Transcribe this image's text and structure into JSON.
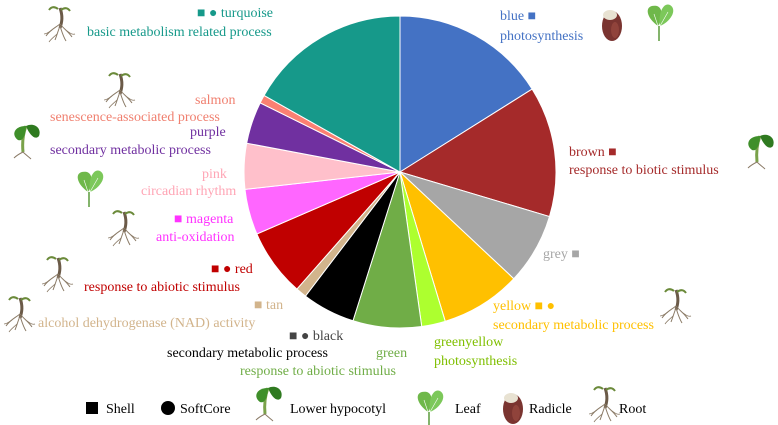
{
  "chart_data": {
    "type": "pie",
    "start_angle_deg": 90,
    "direction": "clockwise",
    "slices": [
      {
        "module": "blue",
        "marker": "■",
        "function": "photosynthesis",
        "value": 17.0,
        "color": "#4472C4",
        "text_color": "#4472C4",
        "icons": [
          "radicle-icon",
          "leaf-icon"
        ]
      },
      {
        "module": "brown",
        "marker": "■",
        "function": "response to biotic stimulus",
        "value": 14.3,
        "color": "#A52A2A",
        "text_color": "#A52A2A",
        "icons": [
          "lower-hypocotyl-icon"
        ]
      },
      {
        "module": "grey",
        "marker": "■",
        "function": "",
        "value": 7.8,
        "color": "#A6A6A6",
        "text_color": "#A6A6A6",
        "icons": []
      },
      {
        "module": "yellow",
        "marker": "■ ●",
        "function": "secondary metabolic process",
        "value": 8.8,
        "color": "#FFC000",
        "text_color": "#FFC000",
        "icons": [
          "root-icon"
        ]
      },
      {
        "module": "greenyellow",
        "marker": "",
        "function": "photosynthesis",
        "value": 2.6,
        "color": "#ADFF2F",
        "text_color": "#7FBF00",
        "icons": []
      },
      {
        "module": "green",
        "marker": "",
        "function": "response to abiotic stimulus",
        "value": 7.5,
        "color": "#70AD47",
        "text_color": "#70AD47",
        "icons": []
      },
      {
        "module": "black",
        "marker": "■ ●",
        "function": "secondary metabolic process",
        "value": 5.8,
        "color": "#000000",
        "text_color": "#000000",
        "icons": []
      },
      {
        "module": "tan",
        "marker": "■",
        "function": "alcohol dehydrogenase (NAD) activity",
        "value": 1.2,
        "color": "#D2B48C",
        "text_color": "#D2B48C",
        "icons": [
          "root-icon"
        ]
      },
      {
        "module": "red",
        "marker": "■ ●",
        "function": "response to abiotic stimulus",
        "value": 7.4,
        "color": "#C00000",
        "text_color": "#C00000",
        "icons": [
          "root-icon"
        ]
      },
      {
        "module": "magenta",
        "marker": "■",
        "function": "anti-oxidation",
        "value": 5.0,
        "color": "#FF66FF",
        "text_color": "#FF33FF",
        "icons": [
          "root-icon"
        ]
      },
      {
        "module": "pink",
        "marker": "",
        "function": "circadian rhythm",
        "value": 5.0,
        "color": "#FFC0CB",
        "text_color": "#FFA5B5",
        "icons": [
          "leaf-icon"
        ]
      },
      {
        "module": "purple",
        "marker": "",
        "function": "secondary metabolic process",
        "value": 4.6,
        "color": "#7030A0",
        "text_color": "#7030A0",
        "icons": [
          "lower-hypocotyl-icon"
        ]
      },
      {
        "module": "salmon",
        "marker": "",
        "function": "senescence-associated process",
        "value": 0.9,
        "color": "#FA8072",
        "text_color": "#F08070",
        "icons": [
          "root-icon"
        ]
      },
      {
        "module": "turquoise",
        "marker": "■ ●",
        "function": "basic metabolism related process",
        "value": 17.8,
        "color": "#16998A",
        "text_color": "#16998A",
        "icons": [
          "root-icon"
        ]
      }
    ],
    "legend": {
      "placement": "bottom",
      "items": [
        {
          "label": "Shell",
          "icon": "square-icon"
        },
        {
          "label": "SoftCore",
          "icon": "circle-icon"
        },
        {
          "label": "Lower hypocotyl",
          "icon": "lower-hypocotyl-icon"
        },
        {
          "label": "Leaf",
          "icon": "leaf-icon"
        },
        {
          "label": "Radicle",
          "icon": "radicle-icon"
        },
        {
          "label": "Root",
          "icon": "root-icon"
        }
      ]
    }
  }
}
